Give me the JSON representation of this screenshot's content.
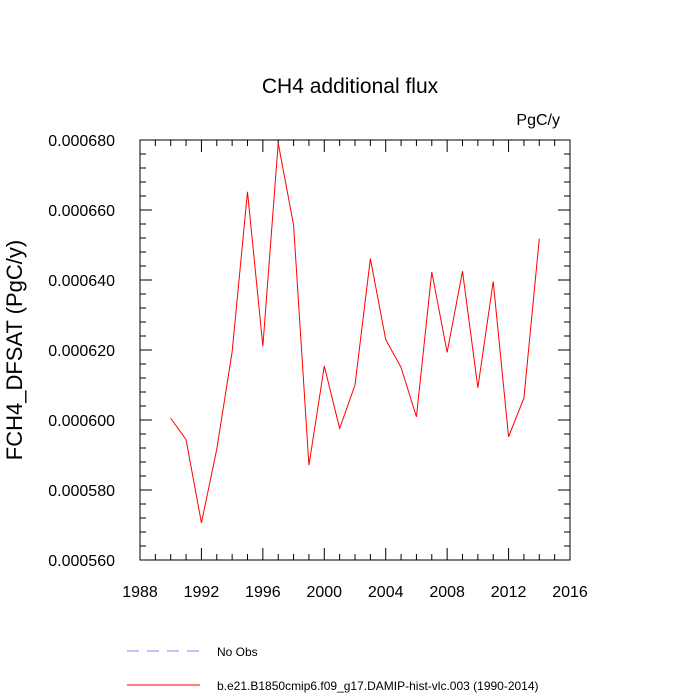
{
  "chart_data": {
    "type": "line",
    "title": "CH4 additional flux",
    "units_label": "PgC/y",
    "ylabel": "FCH4_DFSAT  (PgC/y)",
    "xlabel": "",
    "xlim": [
      1988,
      2016
    ],
    "ylim": [
      0.00056,
      0.00068
    ],
    "x_ticks": [
      1988,
      1992,
      1996,
      2000,
      2004,
      2008,
      2012,
      2016
    ],
    "x_tick_labels": [
      "1988",
      "1992",
      "1996",
      "2000",
      "2004",
      "2008",
      "2012",
      "2016"
    ],
    "y_ticks": [
      0.00056,
      0.00058,
      0.0006,
      0.00062,
      0.00064,
      0.00066,
      0.00068
    ],
    "y_tick_labels": [
      "0.000560",
      "0.000580",
      "0.000600",
      "0.000620",
      "0.000640",
      "0.000660",
      "0.000680"
    ],
    "grid": false,
    "legend_placement": "bottom",
    "x": [
      1990,
      1991,
      1992,
      1993,
      1994,
      1995,
      1996,
      1997,
      1998,
      1999,
      2000,
      2001,
      2002,
      2003,
      2004,
      2005,
      2006,
      2007,
      2008,
      2009,
      2010,
      2011,
      2012,
      2013,
      2014
    ],
    "series": [
      {
        "name": "b.e21.B1850cmip6.f09_g17.DAMIP-hist-vlc.003 (1990-2014)",
        "color": "#ff0000",
        "style": "solid",
        "values": [
          0.0006005,
          0.0005944,
          0.0005706,
          0.0005917,
          0.0006195,
          0.0006652,
          0.0006211,
          0.0006791,
          0.0006557,
          0.0005871,
          0.0006154,
          0.0005976,
          0.00061,
          0.0006461,
          0.000623,
          0.000615,
          0.0006009,
          0.0006423,
          0.0006193,
          0.0006425,
          0.0006092,
          0.0006396,
          0.0005952,
          0.0006063,
          0.0006518
        ]
      }
    ],
    "legend": [
      {
        "label": "No Obs",
        "color": "#8888ff",
        "style": "dashed"
      },
      {
        "label": "b.e21.B1850cmip6.f09_g17.DAMIP-hist-vlc.003 (1990-2014)",
        "color": "#ff0000",
        "style": "solid"
      }
    ]
  }
}
